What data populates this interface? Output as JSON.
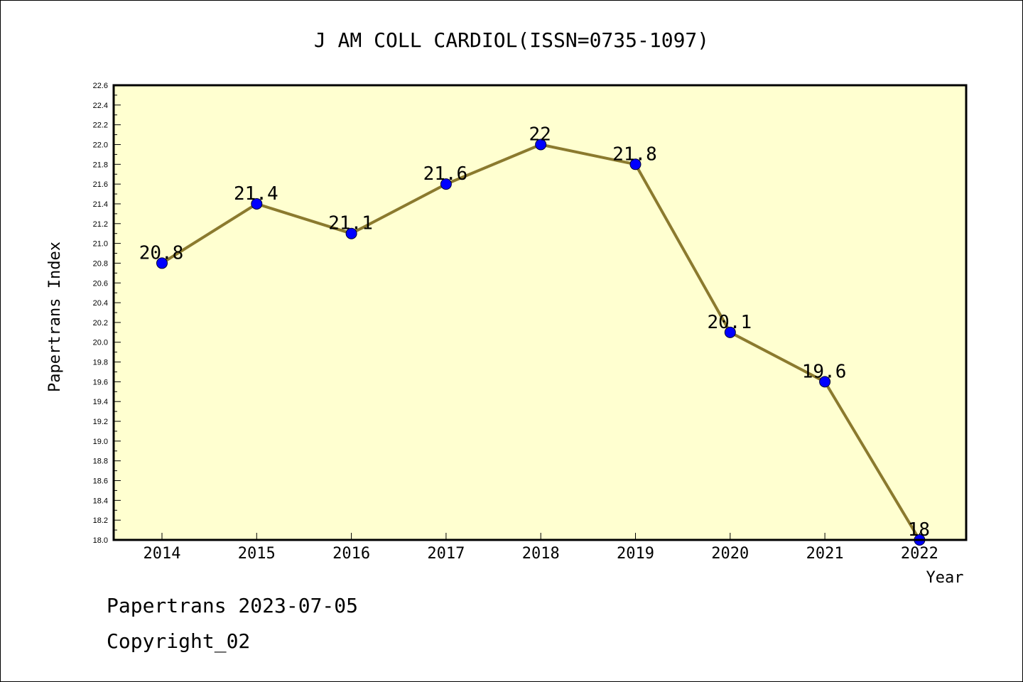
{
  "footer": {
    "stamp": "Papertrans 2023-07-05",
    "copyright": "Copyright_02"
  },
  "chart_data": {
    "type": "line",
    "title": "J AM COLL CARDIOL(ISSN=0735-1097)",
    "xlabel": "Year",
    "ylabel": "Papertrans Index",
    "categories": [
      "2014",
      "2015",
      "2016",
      "2017",
      "2018",
      "2019",
      "2020",
      "2021",
      "2022"
    ],
    "values": [
      20.8,
      21.4,
      21.1,
      21.6,
      22,
      21.8,
      20.1,
      19.6,
      18
    ],
    "value_labels": [
      "20.8",
      "21.4",
      "21.1",
      "21.6",
      "22",
      "21.8",
      "20.1",
      "19.6",
      "18"
    ],
    "ylim": [
      18.0,
      22.6
    ],
    "ytick_labels": [
      "18.0",
      "18.2",
      "18.4",
      "18.6",
      "18.8",
      "19.0",
      "19.2",
      "19.4",
      "19.6",
      "19.8",
      "20.0",
      "20.2",
      "20.4",
      "20.6",
      "20.8",
      "21.0",
      "21.2",
      "21.4",
      "21.6",
      "21.8",
      "22.0",
      "22.2",
      "22.4",
      "22.6"
    ],
    "grid": false,
    "colors": {
      "plot_background": "#ffffd0",
      "line": "#8b7a2e",
      "marker": "#0000ff"
    }
  }
}
